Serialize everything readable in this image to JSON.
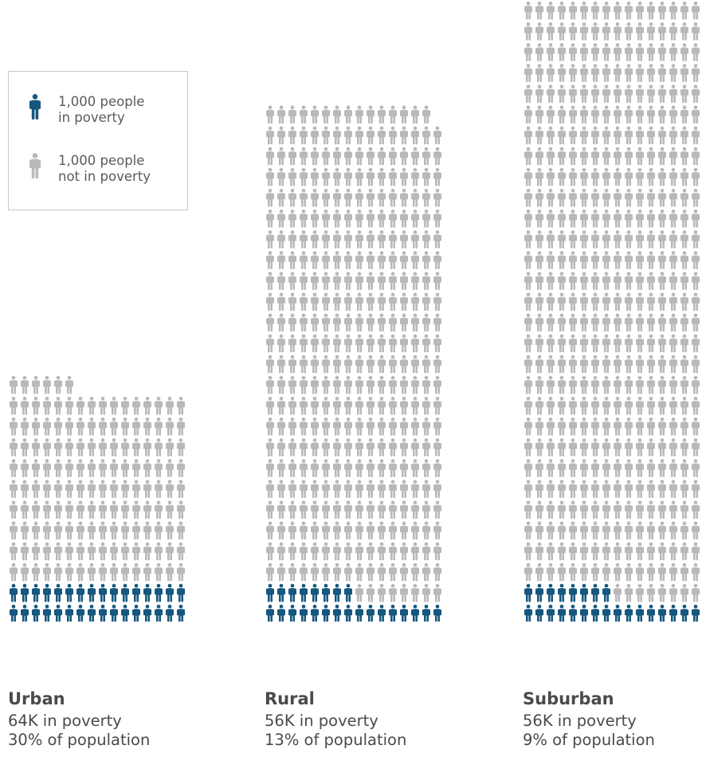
{
  "legend": {
    "poverty_line1": "1,000 people",
    "poverty_line2": "in poverty",
    "nonpoverty_line1": "1,000 people",
    "nonpoverty_line2": "not in poverty"
  },
  "colors": {
    "poverty": "#15577e",
    "not_poverty": "#b9b9b9"
  },
  "chart_data": {
    "type": "bar",
    "unit": "1,000 people per icon",
    "series": [
      {
        "name": "in poverty",
        "values": [
          64,
          56,
          56
        ]
      },
      {
        "name": "not in poverty",
        "values": [
          150,
          375,
          600
        ]
      }
    ],
    "categories": [
      {
        "label": "Urban",
        "poverty_text": "64K in poverty",
        "share_text": "30% of population",
        "in_poverty": 64,
        "not_in_poverty": 150,
        "total": 214
      },
      {
        "label": "Rural",
        "poverty_text": "56K in poverty",
        "share_text": "13% of population",
        "in_poverty": 56,
        "not_in_poverty": 375,
        "total": 431
      },
      {
        "label": "Suburban",
        "poverty_text": "56K in poverty",
        "share_text": "9% of population",
        "in_poverty": 56,
        "not_in_poverty": 600,
        "total": 656
      }
    ]
  }
}
